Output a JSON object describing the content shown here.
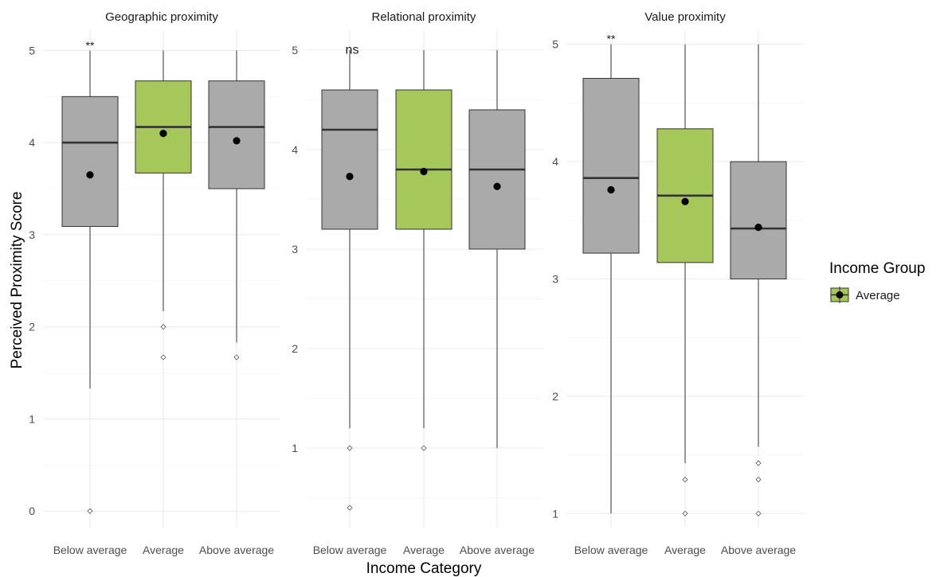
{
  "chart_data": {
    "type": "boxplot",
    "xlabel": "Income Category",
    "ylabel": "Perceived Proximity Score",
    "legend": {
      "title": "Income Group",
      "placement": "right",
      "entries": [
        {
          "label": "Average",
          "color": "#a6c85a"
        }
      ]
    },
    "colors": {
      "highlight": "#a6c85a",
      "default": "#aaaaaa",
      "box_border": "#333333",
      "mean_point": "#000000"
    },
    "categories": [
      "Below average",
      "Average",
      "Above average"
    ],
    "highlight_category": "Average",
    "grid": true,
    "panels": [
      {
        "title": "Geographic proximity",
        "ylim": [
          -0.18,
          5.22
        ],
        "yticks": [
          0,
          1,
          2,
          3,
          4,
          5
        ],
        "significance": {
          "label": "**",
          "category": "Below average",
          "y": 5.08
        },
        "boxes": [
          {
            "category": "Below average",
            "q1": 3.09,
            "median": 4.0,
            "q3": 4.5,
            "whisker_low": 1.33,
            "whisker_high": 5.0,
            "mean": 3.65,
            "outliers": [
              0.0
            ]
          },
          {
            "category": "Average",
            "q1": 3.67,
            "median": 4.17,
            "q3": 4.67,
            "whisker_low": 2.17,
            "whisker_high": 5.0,
            "mean": 4.1,
            "outliers": [
              2.0,
              1.67
            ]
          },
          {
            "category": "Above average",
            "q1": 3.5,
            "median": 4.17,
            "q3": 4.67,
            "whisker_low": 1.83,
            "whisker_high": 5.0,
            "mean": 4.02,
            "outliers": [
              1.67
            ]
          }
        ]
      },
      {
        "title": "Relational proximity",
        "ylim": [
          0.2,
          5.2
        ],
        "yticks": [
          1,
          2,
          3,
          4,
          5
        ],
        "significance": {
          "label": "ns",
          "category": "Below average",
          "y": 5.02
        },
        "boxes": [
          {
            "category": "Below average",
            "q1": 3.2,
            "median": 4.2,
            "q3": 4.6,
            "whisker_low": 1.2,
            "whisker_high": 5.0,
            "mean": 3.73,
            "outliers": [
              1.0,
              0.4
            ]
          },
          {
            "category": "Average",
            "q1": 3.2,
            "median": 3.8,
            "q3": 4.6,
            "whisker_low": 1.2,
            "whisker_high": 5.0,
            "mean": 3.78,
            "outliers": [
              1.0
            ]
          },
          {
            "category": "Above average",
            "q1": 3.0,
            "median": 3.8,
            "q3": 4.4,
            "whisker_low": 1.0,
            "whisker_high": 5.0,
            "mean": 3.63,
            "outliers": []
          }
        ]
      },
      {
        "title": "Value proximity",
        "ylim": [
          0.88,
          5.12
        ],
        "yticks": [
          1,
          2,
          3,
          4,
          5
        ],
        "significance": {
          "label": "**",
          "category": "Below average",
          "y": 5.07
        },
        "boxes": [
          {
            "category": "Below average",
            "q1": 3.22,
            "median": 3.86,
            "q3": 4.71,
            "whisker_low": 1.0,
            "whisker_high": 5.0,
            "mean": 3.76,
            "outliers": []
          },
          {
            "category": "Average",
            "q1": 3.14,
            "median": 3.71,
            "q3": 4.28,
            "whisker_low": 1.43,
            "whisker_high": 5.0,
            "mean": 3.66,
            "outliers": [
              1.29,
              1.0
            ]
          },
          {
            "category": "Above average",
            "q1": 3.0,
            "median": 3.43,
            "q3": 4.0,
            "whisker_low": 1.57,
            "whisker_high": 5.0,
            "mean": 3.44,
            "outliers": [
              1.43,
              1.29,
              1.0
            ]
          }
        ]
      }
    ]
  }
}
